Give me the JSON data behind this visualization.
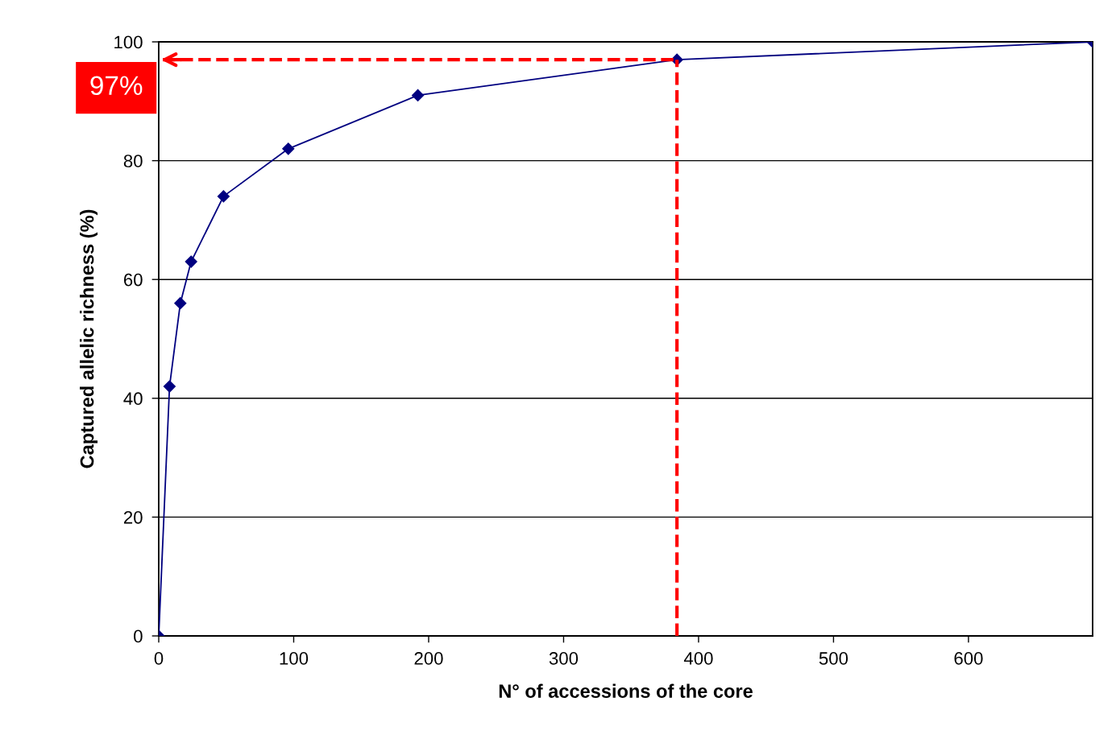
{
  "chart_data": {
    "type": "line",
    "xlabel": "N° of accessions of the core",
    "ylabel": "Captured allelic richness (%)",
    "x": [
      0,
      8,
      16,
      24,
      48,
      96,
      192,
      384,
      692
    ],
    "series": [
      {
        "color": "#000080",
        "values": [
          0,
          42,
          56,
          63,
          74,
          82,
          91,
          97,
          100
        ]
      }
    ],
    "marker": "diamond",
    "line_style": "solid",
    "xlim": [
      0,
      692
    ],
    "xticks": [
      0,
      100,
      200,
      300,
      400,
      500,
      600
    ],
    "ylim": [
      0,
      100
    ],
    "yticks": [
      0,
      20,
      40,
      60,
      80,
      100
    ],
    "grid": "y",
    "legend": false,
    "ref_lines": [
      {
        "axis": "x",
        "value": 384,
        "color": "#ff0000",
        "line_style": "dashed"
      },
      {
        "axis": "y",
        "value": 97,
        "label": "97%",
        "color": "#ff0000",
        "line_style": "dashed"
      }
    ]
  }
}
